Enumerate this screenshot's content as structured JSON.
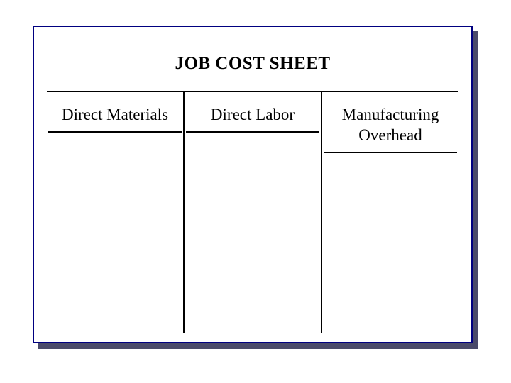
{
  "sheet": {
    "title": "JOB COST SHEET",
    "columns": [
      {
        "label": "Direct Materials"
      },
      {
        "label": "Direct Labor"
      },
      {
        "label": "Manufacturing Overhead"
      }
    ],
    "style": {
      "border_color": "#000080",
      "shadow_color": "#4a4a6a",
      "divider_color": "#000000",
      "background_color": "#ffffff",
      "title_fontsize": 25,
      "header_fontsize": 23,
      "font_family": "Times New Roman",
      "sheet_width": 620,
      "sheet_height": 448
    }
  }
}
